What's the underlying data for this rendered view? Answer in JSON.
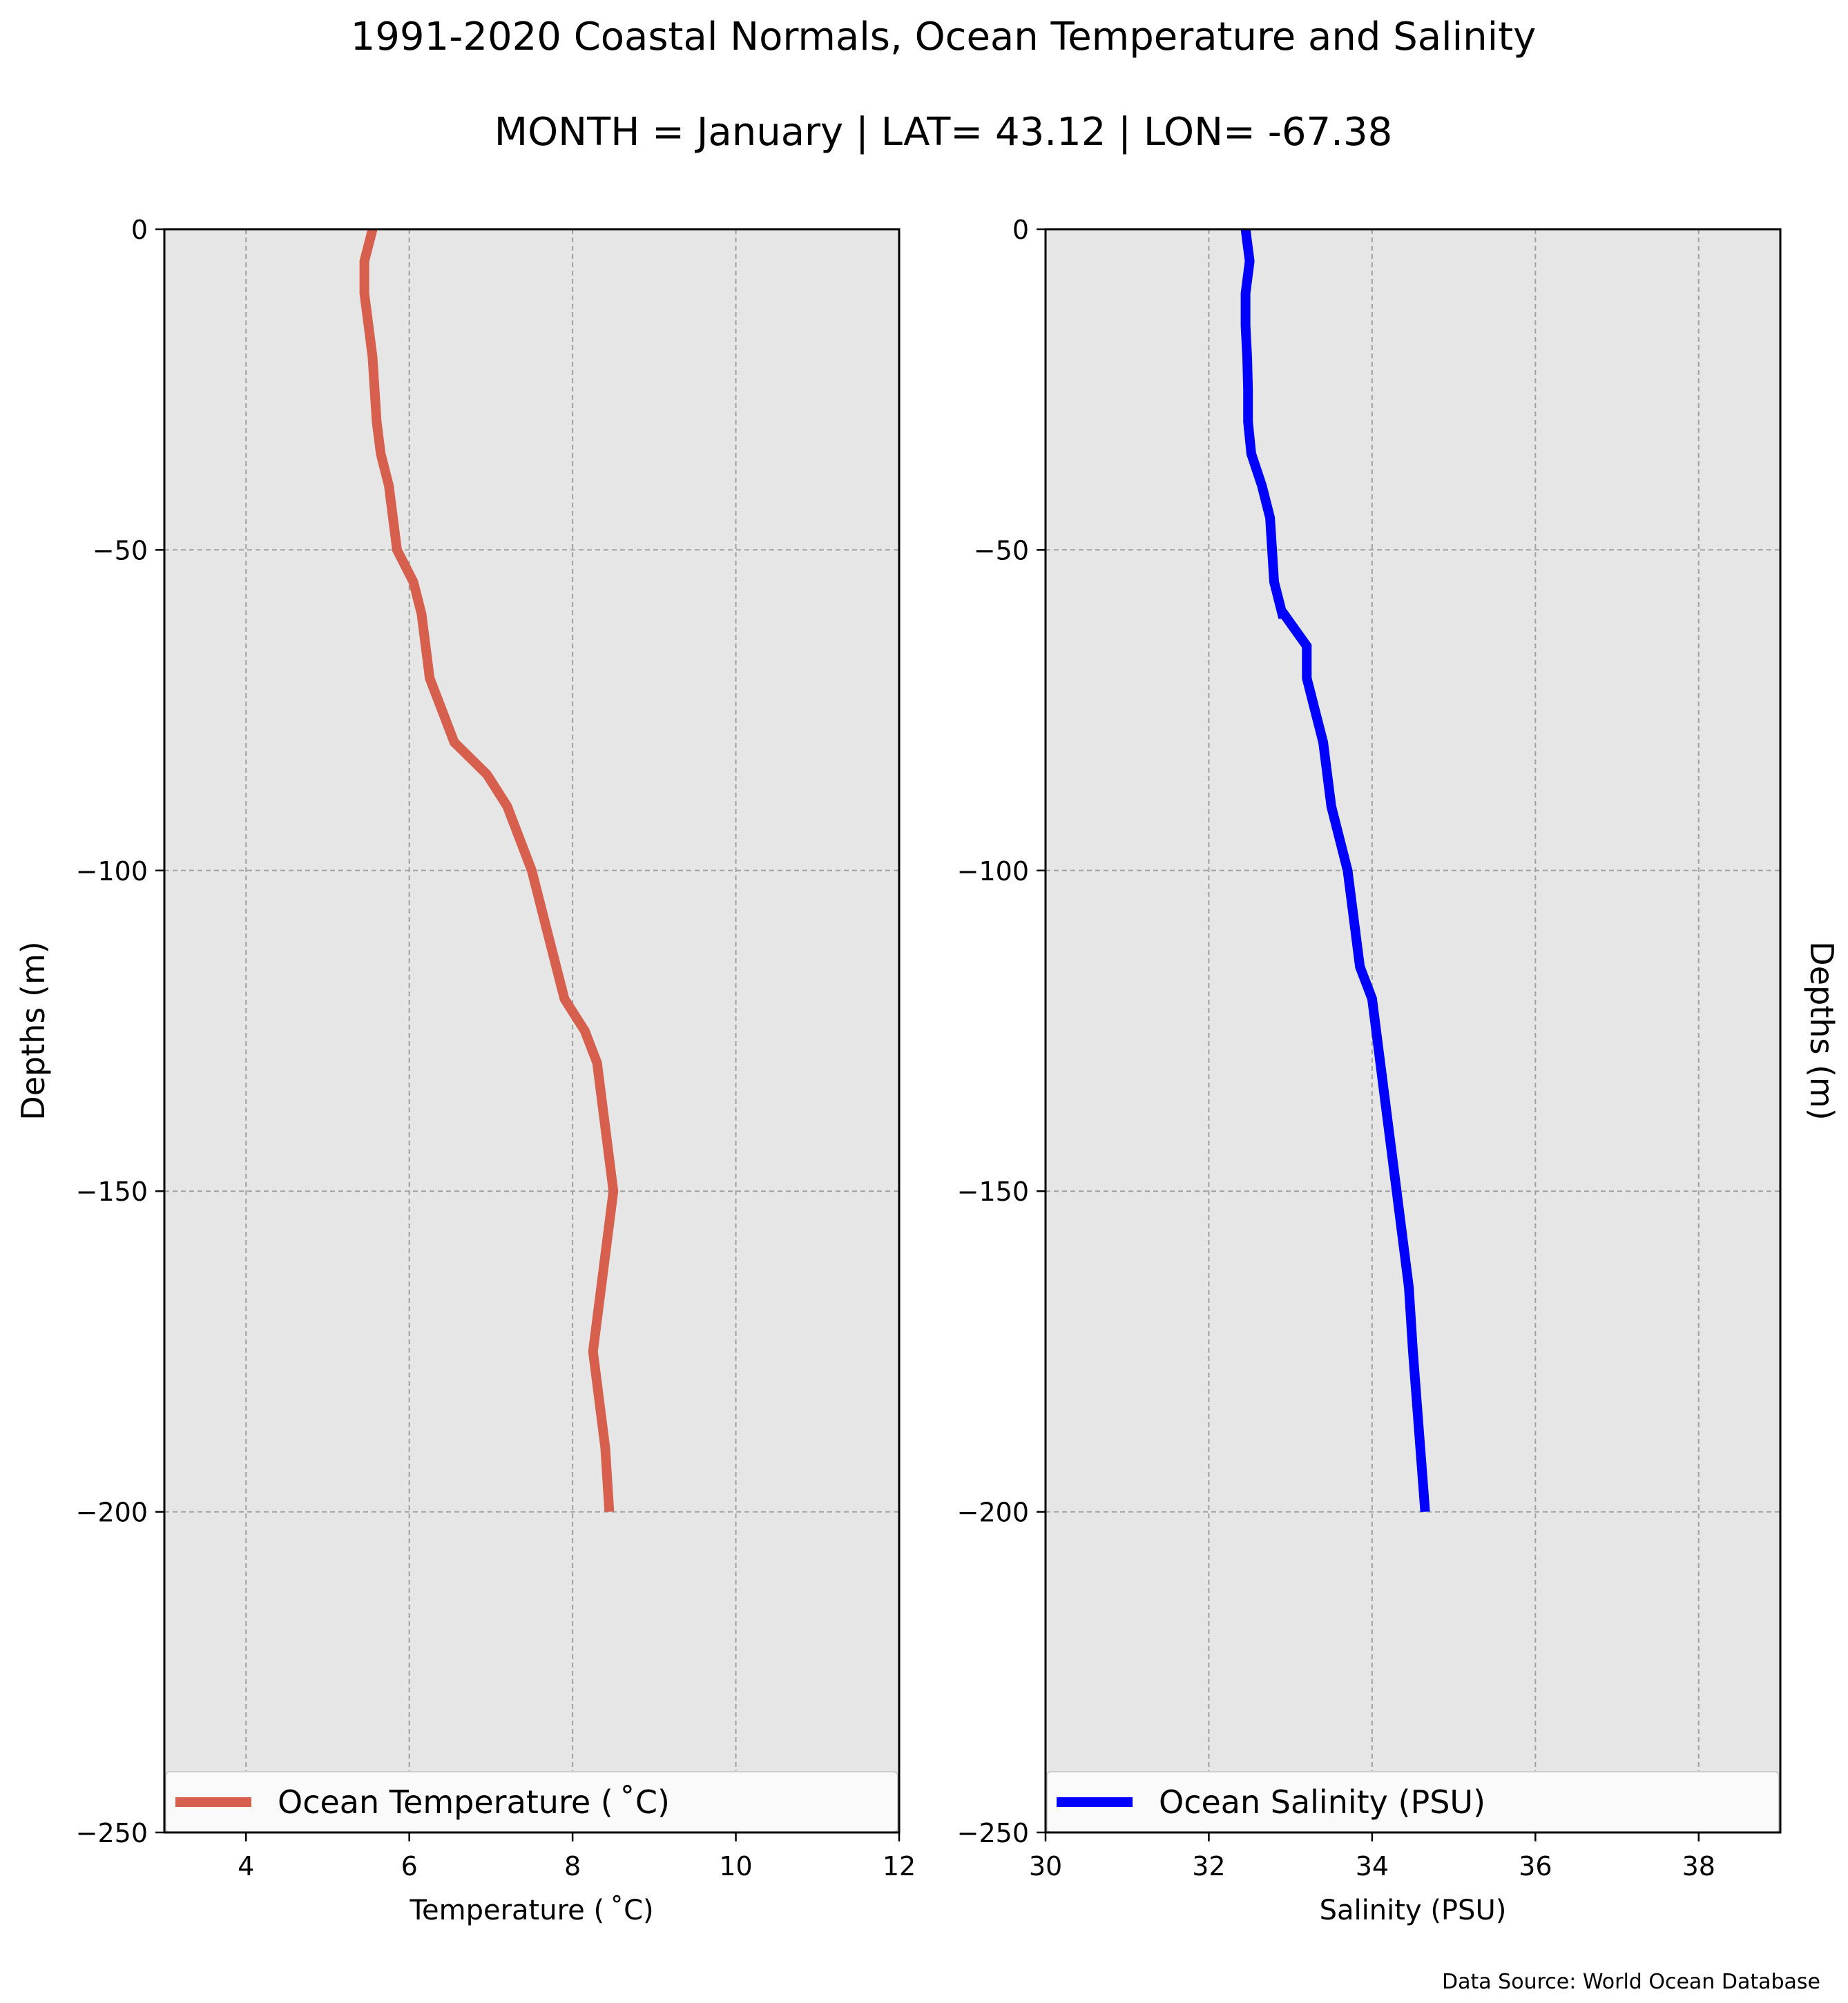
{
  "figure": {
    "title": "1991-2020 Coastal Normals, Ocean Temperature and Salinity",
    "subtitle": "MONTH = January | LAT= 43.12 | LON= -67.38",
    "footer": "Data Source: World Ocean Database"
  },
  "colors": {
    "temperature_line": "#d6604d",
    "salinity_line": "#0000ff",
    "plot_background": "#e6e6e6",
    "grid": "#a0a0a0"
  },
  "chart_data": [
    {
      "type": "line",
      "orientation": "vertical-profile",
      "xlabel": "Temperature ($^\\circ$C)",
      "xlabel_display": "Temperature ( ˚C)",
      "ylabel": "Depths (m)",
      "xlim": [
        3,
        12
      ],
      "ylim": [
        -250,
        0
      ],
      "x_ticks": [
        4,
        6,
        8,
        10,
        12
      ],
      "x_tick_labels": [
        "4",
        "6",
        "8",
        "10",
        "12"
      ],
      "y_ticks": [
        0,
        -50,
        -100,
        -150,
        -200,
        -250
      ],
      "y_tick_labels": [
        "0",
        "−50",
        "−100",
        "−150",
        "−200",
        "−250"
      ],
      "grid": true,
      "legend_position": "bottom",
      "series": [
        {
          "name": "Ocean Temperature ($^\\circ$C)",
          "display_name": "Ocean Temperature ( ˚C)",
          "color": "#d6604d",
          "x": [
            5.55,
            5.45,
            5.45,
            5.5,
            5.55,
            5.6,
            5.65,
            5.75,
            5.85,
            6.05,
            6.15,
            6.25,
            6.4,
            6.55,
            6.95,
            7.2,
            7.5,
            7.7,
            7.9,
            8.15,
            8.3,
            8.5,
            8.4,
            8.3,
            8.25,
            8.3,
            8.4,
            8.45
          ],
          "y": [
            0,
            -5,
            -10,
            -15,
            -20,
            -30,
            -35,
            -40,
            -50,
            -55,
            -60,
            -70,
            -75,
            -80,
            -85,
            -90,
            -100,
            -110,
            -120,
            -125,
            -130,
            -150,
            -160,
            -170,
            -175,
            -180,
            -190,
            -200
          ]
        }
      ]
    },
    {
      "type": "line",
      "orientation": "vertical-profile",
      "xlabel": "Salinity (PSU)",
      "ylabel": "Depths (m)",
      "xlim": [
        30,
        39
      ],
      "ylim": [
        -250,
        0
      ],
      "x_ticks": [
        30,
        32,
        34,
        36,
        38
      ],
      "x_tick_labels": [
        "30",
        "32",
        "34",
        "36",
        "38"
      ],
      "y_ticks": [
        0,
        -50,
        -100,
        -150,
        -200,
        -250
      ],
      "y_tick_labels": [
        "0",
        "−50",
        "−100",
        "−150",
        "−200",
        "−250"
      ],
      "grid": true,
      "legend_position": "bottom",
      "series": [
        {
          "name": "Ocean Salinity (PSU)",
          "color": "#0000ff",
          "x": [
            32.45,
            32.5,
            32.45,
            32.45,
            32.47,
            32.48,
            32.48,
            32.52,
            32.65,
            32.75,
            32.8,
            32.9,
            32.92,
            33.2,
            33.2,
            33.3,
            33.4,
            33.45,
            33.5,
            33.6,
            33.7,
            33.85,
            34.0,
            34.05,
            34.3,
            34.45,
            34.5,
            34.65
          ],
          "y": [
            0,
            -5,
            -10,
            -15,
            -20,
            -25,
            -30,
            -35,
            -40,
            -45,
            -55,
            -60,
            -60,
            -65,
            -70,
            -75,
            -80,
            -85,
            -90,
            -95,
            -100,
            -115,
            -120,
            -125,
            -150,
            -165,
            -175,
            -200
          ]
        }
      ]
    }
  ]
}
